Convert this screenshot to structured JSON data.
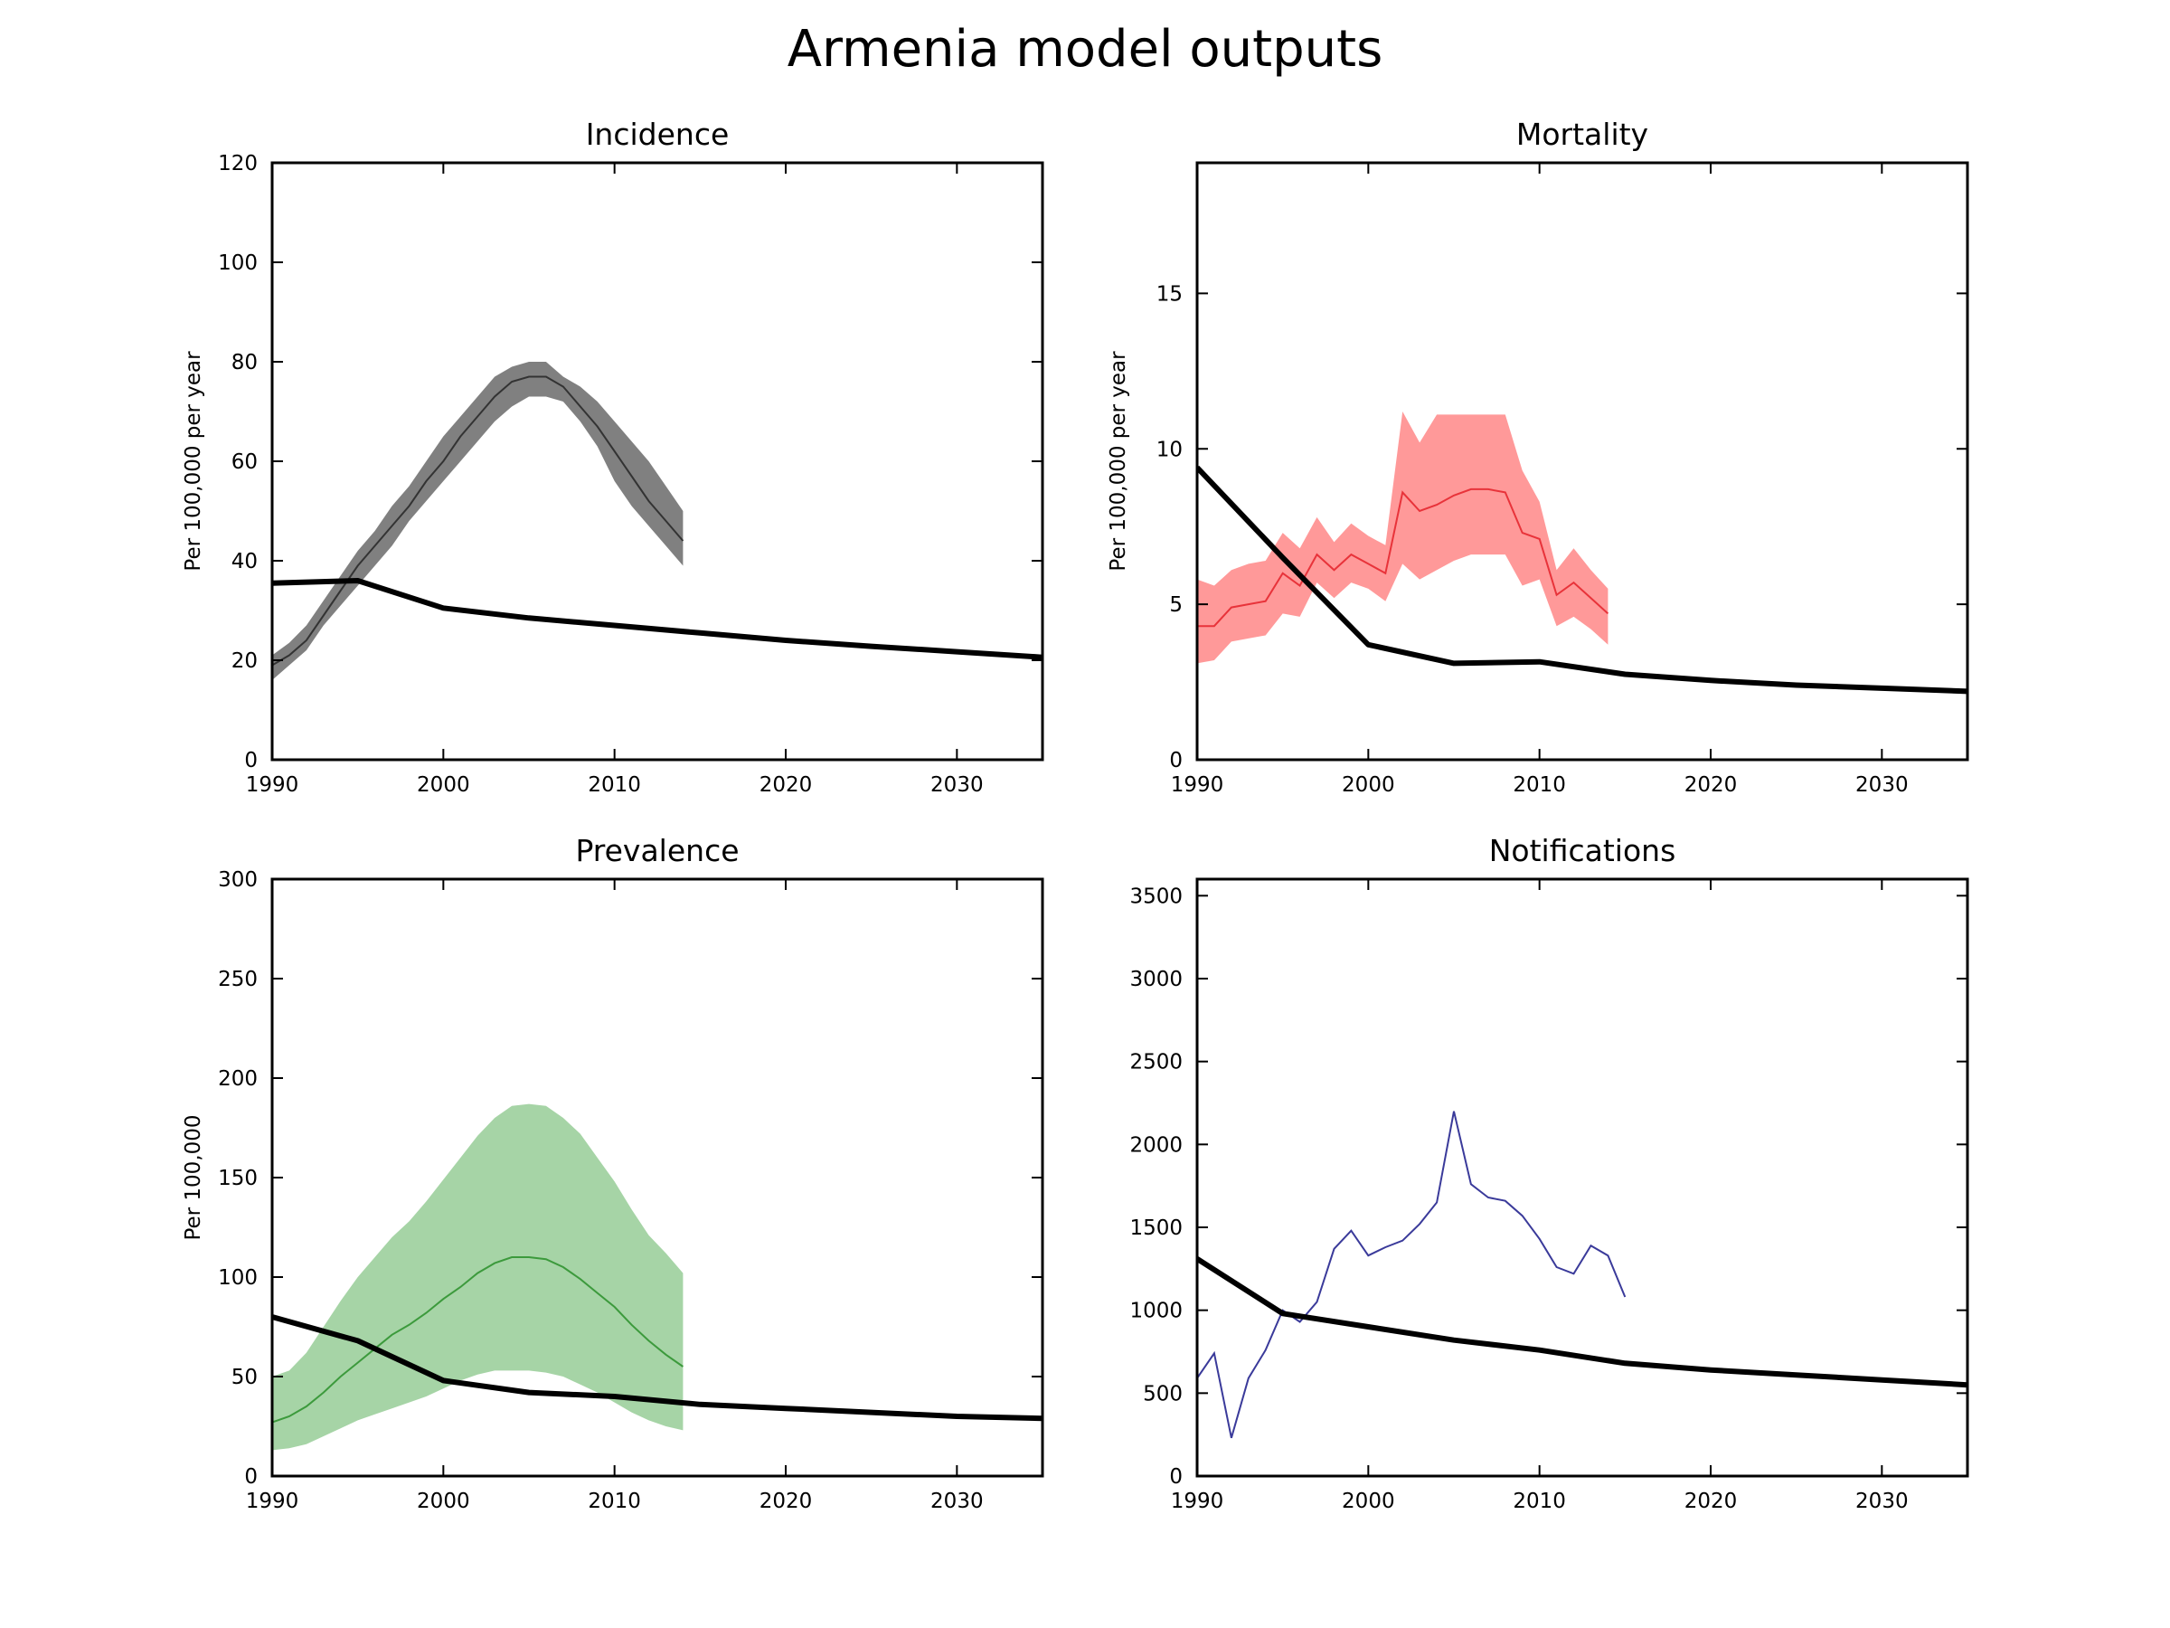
{
  "figure": {
    "title": "Armenia model outputs"
  },
  "chart_data": [
    {
      "type": "line",
      "title": "Incidence",
      "xlabel": "",
      "ylabel": "Per 100,000 per year",
      "xlim": [
        1990,
        2035
      ],
      "ylim": [
        0,
        120
      ],
      "xticks": [
        1990,
        2000,
        2010,
        2020,
        2030
      ],
      "yticks": [
        0,
        20,
        40,
        60,
        80,
        100,
        120
      ],
      "grid": false,
      "colors": {
        "band": "#808080",
        "estimate": "#333333",
        "model": "#000000"
      },
      "band": {
        "x": [
          1990,
          1991,
          1992,
          1993,
          1994,
          1995,
          1996,
          1997,
          1998,
          1999,
          2000,
          2001,
          2002,
          2003,
          2004,
          2005,
          2006,
          2007,
          2008,
          2009,
          2010,
          2011,
          2012,
          2013,
          2014
        ],
        "lower": [
          16,
          19,
          22,
          27,
          31,
          35,
          39,
          43,
          48,
          52,
          56,
          60,
          64,
          68,
          71,
          73,
          73,
          72,
          68,
          63,
          56,
          51,
          47,
          43,
          39
        ],
        "upper": [
          21,
          23.5,
          27,
          32,
          37,
          42,
          46,
          51,
          55,
          60,
          65,
          69,
          73,
          77,
          79,
          80,
          80,
          77,
          75,
          72,
          68,
          64,
          60,
          55,
          50
        ]
      },
      "estimate": {
        "x": [
          1990,
          1991,
          1992,
          1993,
          1994,
          1995,
          1996,
          1997,
          1998,
          1999,
          2000,
          2001,
          2002,
          2003,
          2004,
          2005,
          2006,
          2007,
          2008,
          2009,
          2010,
          2011,
          2012,
          2013,
          2014
        ],
        "y": [
          19,
          21,
          24,
          29,
          34,
          39,
          43,
          47,
          51,
          56,
          60,
          65,
          69,
          73,
          76,
          77,
          77,
          75,
          71,
          67,
          62,
          57,
          52,
          48,
          44
        ]
      },
      "model": {
        "x": [
          1990,
          1995,
          2000,
          2005,
          2010,
          2015,
          2020,
          2025,
          2030,
          2035
        ],
        "y": [
          35.5,
          36,
          30.5,
          28.5,
          27,
          25.5,
          24,
          22.8,
          21.7,
          20.6
        ]
      }
    },
    {
      "type": "line",
      "title": "Mortality",
      "xlabel": "",
      "ylabel": "Per 100,000 per year",
      "xlim": [
        1990,
        2035
      ],
      "ylim": [
        0,
        19.2
      ],
      "xticks": [
        1990,
        2000,
        2010,
        2020,
        2030
      ],
      "yticks": [
        0,
        5,
        10,
        15
      ],
      "grid": false,
      "colors": {
        "band": "#ff9999",
        "estimate": "#e8333a",
        "model": "#000000"
      },
      "band": {
        "x": [
          1990,
          1991,
          1992,
          1993,
          1994,
          1995,
          1996,
          1997,
          1998,
          1999,
          2000,
          2001,
          2002,
          2003,
          2004,
          2005,
          2006,
          2007,
          2008,
          2009,
          2010,
          2011,
          2012,
          2013,
          2014
        ],
        "lower": [
          3.1,
          3.2,
          3.8,
          3.9,
          4.0,
          4.7,
          4.6,
          5.7,
          5.2,
          5.7,
          5.5,
          5.1,
          6.3,
          5.8,
          6.1,
          6.4,
          6.6,
          6.6,
          6.6,
          5.6,
          5.8,
          4.3,
          4.6,
          4.2,
          3.7
        ],
        "upper": [
          5.8,
          5.6,
          6.1,
          6.3,
          6.4,
          7.3,
          6.8,
          7.8,
          7.0,
          7.6,
          7.2,
          6.9,
          11.2,
          10.2,
          11.1,
          11.1,
          11.1,
          11.1,
          11.1,
          9.3,
          8.3,
          6.1,
          6.8,
          6.1,
          5.5
        ]
      },
      "estimate": {
        "x": [
          1990,
          1991,
          1992,
          1993,
          1994,
          1995,
          1996,
          1997,
          1998,
          1999,
          2000,
          2001,
          2002,
          2003,
          2004,
          2005,
          2006,
          2007,
          2008,
          2009,
          2010,
          2011,
          2012,
          2013,
          2014
        ],
        "y": [
          4.3,
          4.3,
          4.9,
          5.0,
          5.1,
          6.0,
          5.6,
          6.6,
          6.1,
          6.6,
          6.3,
          6.0,
          8.6,
          8.0,
          8.2,
          8.5,
          8.7,
          8.7,
          8.6,
          7.3,
          7.1,
          5.3,
          5.7,
          5.2,
          4.7
        ]
      },
      "model": {
        "x": [
          1990,
          1995,
          2000,
          2005,
          2010,
          2015,
          2020,
          2025,
          2030,
          2035
        ],
        "y": [
          9.4,
          6.5,
          3.7,
          3.1,
          3.15,
          2.75,
          2.55,
          2.4,
          2.3,
          2.2
        ]
      }
    },
    {
      "type": "line",
      "title": "Prevalence",
      "xlabel": "",
      "ylabel": "Per 100,000",
      "xlim": [
        1990,
        2035
      ],
      "ylim": [
        0,
        300
      ],
      "xticks": [
        1990,
        2000,
        2010,
        2020,
        2030
      ],
      "yticks": [
        0,
        50,
        100,
        150,
        200,
        250,
        300
      ],
      "grid": false,
      "colors": {
        "band": "#a6d4a6",
        "estimate": "#3c9a3c",
        "model": "#000000"
      },
      "band": {
        "x": [
          1990,
          1991,
          1992,
          1993,
          1994,
          1995,
          1996,
          1997,
          1998,
          1999,
          2000,
          2001,
          2002,
          2003,
          2004,
          2005,
          2006,
          2007,
          2008,
          2009,
          2010,
          2011,
          2012,
          2013,
          2014
        ],
        "lower": [
          13,
          14,
          16,
          20,
          24,
          28,
          31,
          34,
          37,
          40,
          44,
          48,
          51,
          53,
          53,
          53,
          52,
          50,
          46,
          42,
          37,
          32,
          28,
          25,
          23
        ],
        "upper": [
          50,
          53,
          62,
          75,
          88,
          100,
          110,
          120,
          128,
          138,
          149,
          160,
          171,
          180,
          186,
          187,
          186,
          180,
          172,
          160,
          148,
          134,
          121,
          112,
          102
        ]
      },
      "estimate": {
        "x": [
          1990,
          1991,
          1992,
          1993,
          1994,
          1995,
          1996,
          1997,
          1998,
          1999,
          2000,
          2001,
          2002,
          2003,
          2004,
          2005,
          2006,
          2007,
          2008,
          2009,
          2010,
          2011,
          2012,
          2013,
          2014
        ],
        "y": [
          27,
          30,
          35,
          42,
          50,
          57,
          64,
          71,
          76,
          82,
          89,
          95,
          102,
          107,
          110,
          110,
          109,
          105,
          99,
          92,
          85,
          76,
          68,
          61,
          55
        ]
      },
      "model": {
        "x": [
          1990,
          1995,
          2000,
          2005,
          2010,
          2015,
          2020,
          2025,
          2030,
          2035
        ],
        "y": [
          80,
          68,
          48,
          42,
          40,
          36,
          34,
          32,
          30,
          29
        ]
      }
    },
    {
      "type": "line",
      "title": "Notifications",
      "xlabel": "",
      "ylabel": "",
      "xlim": [
        1990,
        2035
      ],
      "ylim": [
        0,
        3600
      ],
      "xticks": [
        1990,
        2000,
        2010,
        2020,
        2030
      ],
      "yticks": [
        0,
        500,
        1000,
        1500,
        2000,
        2500,
        3000,
        3500
      ],
      "grid": false,
      "colors": {
        "notifications": "#3a3a9a",
        "model": "#000000"
      },
      "notifications": {
        "x": [
          1990,
          1991,
          1992,
          1993,
          1994,
          1995,
          1996,
          1997,
          1998,
          1999,
          2000,
          2001,
          2002,
          2003,
          2004,
          2005,
          2006,
          2007,
          2008,
          2009,
          2010,
          2011,
          2012,
          2013,
          2014,
          2015
        ],
        "y": [
          590,
          740,
          230,
          590,
          760,
          1000,
          930,
          1050,
          1370,
          1480,
          1330,
          1380,
          1420,
          1520,
          1650,
          2200,
          1760,
          1680,
          1660,
          1570,
          1430,
          1260,
          1220,
          1390,
          1330,
          1080
        ]
      },
      "model": {
        "x": [
          1990,
          1995,
          2000,
          2005,
          2010,
          2015,
          2020,
          2025,
          2030,
          2035
        ],
        "y": [
          1310,
          980,
          900,
          820,
          760,
          680,
          640,
          610,
          580,
          550
        ]
      }
    }
  ]
}
